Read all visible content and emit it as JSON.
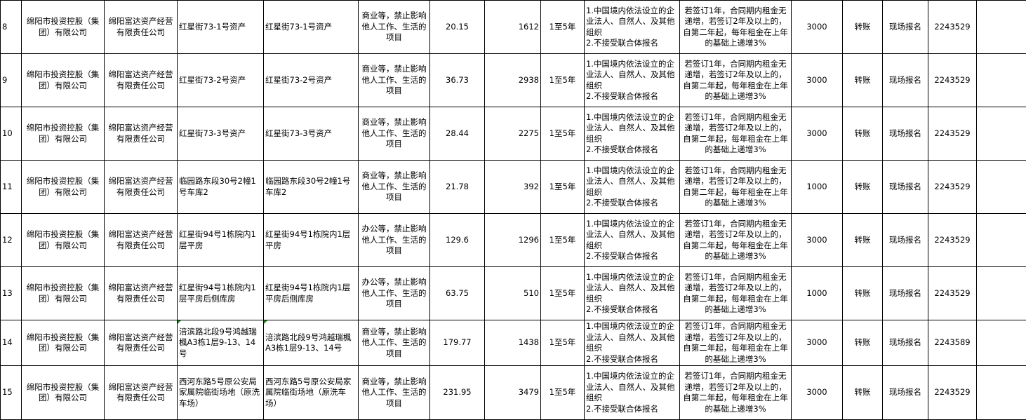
{
  "rows": [
    {
      "no": "8",
      "owner": "绵阳市投资控股（集团）有限公司",
      "manager": "绵阳富达资产经营有限责任公司",
      "asset": "红星街73-1号资产",
      "location": "红星街73-1号资产",
      "use": "商业等，禁止影响他人工作、生活的项目",
      "area": "20.15",
      "rent": "1612",
      "term": "1至5年",
      "conditions": "1.中国境内依法设立的企业法人、自然人、及其他组织\n2.不接受联合体报名",
      "increase": "若签订1年，合同期内租金无递增，若签订2年及以上的，自第二年起，每年租金在上年的基础上递增3%",
      "deposit": "3000",
      "payment": "转账",
      "method": "现场报名",
      "phone": "2243529",
      "extra": ""
    },
    {
      "no": "9",
      "owner": "绵阳市投资控股（集团）有限公司",
      "manager": "绵阳富达资产经营有限责任公司",
      "asset": "红星街73-2号资产",
      "location": "红星街73-2号资产",
      "use": "商业等，禁止影响他人工作、生活的项目",
      "area": "36.73",
      "rent": "2938",
      "term": "1至5年",
      "conditions": "1.中国境内依法设立的企业法人、自然人、及其他组织\n2.不接受联合体报名",
      "increase": "若签订1年，合同期内租金无递增，若签订2年及以上的，自第二年起，每年租金在上年的基础上递增3%",
      "deposit": "3000",
      "payment": "转账",
      "method": "现场报名",
      "phone": "2243529",
      "extra": ""
    },
    {
      "no": "10",
      "owner": "绵阳市投资控股（集团）有限公司",
      "manager": "绵阳富达资产经营有限责任公司",
      "asset": "红星街73-3号资产",
      "location": "红星街73-3号资产",
      "use": "商业等，禁止影响他人工作、生活的项目",
      "area": "28.44",
      "rent": "2275",
      "term": "1至5年",
      "conditions": "1.中国境内依法设立的企业法人、自然人、及其他组织\n2.不接受联合体报名",
      "increase": "若签订1年，合同期内租金无递增，若签订2年及以上的，自第二年起，每年租金在上年的基础上递增3%",
      "deposit": "3000",
      "payment": "转账",
      "method": "现场报名",
      "phone": "2243529",
      "extra": ""
    },
    {
      "no": "11",
      "owner": "绵阳市投资控股（集团）有限公司",
      "manager": "绵阳富达资产经营有限责任公司",
      "asset": "临园路东段30号2幢1号车库2",
      "location": "临园路东段30号2幢1号车库2",
      "use": "商业等，禁止影响他人工作、生活的项目",
      "area": "21.78",
      "rent": "392",
      "term": "1至5年",
      "conditions": "1.中国境内依法设立的企业法人、自然人、及其他组织\n2.不接受联合体报名",
      "increase": "若签订1年，合同期内租金无递增，若签订2年及以上的，自第二年起，每年租金在上年的基础上递增3%",
      "deposit": "1000",
      "payment": "转账",
      "method": "现场报名",
      "phone": "2243529",
      "extra": ""
    },
    {
      "no": "12",
      "owner": "绵阳市投资控股（集团）有限公司",
      "manager": "绵阳富达资产经营有限责任公司",
      "asset": "红星街94号1栋院内1层平房",
      "location": "红星街94号1栋院内1层平房",
      "use": "办公等，禁止影响他人工作、生活的项目",
      "area": "129.6",
      "rent": "1296",
      "term": "1至5年",
      "conditions": "1.中国境内依法设立的企业法人、自然人、及其他组织\n2.不接受联合体报名",
      "increase": "若签订1年，合同期内租金无递增，若签订2年及以上的，自第二年起，每年租金在上年的基础上递增3%",
      "deposit": "3000",
      "payment": "转账",
      "method": "现场报名",
      "phone": "2243529",
      "extra": ""
    },
    {
      "no": "13",
      "owner": "绵阳市投资控股（集团）有限公司",
      "manager": "绵阳富达资产经营有限责任公司",
      "asset": "红星街94号1栋院内1层平房后侧库房",
      "location": "红星街94号1栋院内1层平房后侧库房",
      "use": "办公等，禁止影响他人工作、生活的项目",
      "area": "63.75",
      "rent": "510",
      "term": "1至5年",
      "conditions": "1.中国境内依法设立的企业法人、自然人、及其他组织\n2.不接受联合体报名",
      "increase": "若签订1年，合同期内租金无递增，若签订2年及以上的，自第二年起，每年租金在上年的基础上递增3%",
      "deposit": "1000",
      "payment": "转账",
      "method": "现场报名",
      "phone": "2243529",
      "extra": ""
    },
    {
      "no": "14",
      "owner": "绵阳市投资控股（集团）有限公司",
      "manager": "绵阳富达资产经营有限责任公司",
      "asset": " 涪滨路北段9号鸿越瑞楓A3栋1层9-13、14号",
      "location": " 涪滨路北段9号鸿越瑞楓A3栋1层9-13、14号",
      "use": "商业等，禁止影响他人工作、生活的项目",
      "area": "179.77",
      "rent": "1438",
      "term": "1至5年",
      "conditions": "1.中国境内依法设立的企业法人、自然人、及其他组织\n2.不接受联合体报名",
      "increase": "若签订1年，合同期内租金无递增，若签订2年及以上的，自第二年起，每年租金在上年的基础上递增3%",
      "deposit": "3000",
      "payment": "转账",
      "method": "现场报名",
      "phone": "2243589",
      "extra": ""
    },
    {
      "no": "15",
      "owner": "绵阳市投资控股（集团）有限公司",
      "manager": "绵阳富达资产经营有限责任公司",
      "asset": "西河东路5号原公安局家属院临街场地（原洗车场）",
      "location": "西河东路5号原公安局家属院临街场地（原洗车场）",
      "use": "商业等，禁止影响他人工作、生活的项目",
      "area": "231.95",
      "rent": "3479",
      "term": "1至5年",
      "conditions": "1.中国境内依法设立的企业法人、自然人、及其他组织\n2.不接受联合体报名",
      "increase": "若签订1年，合同期内租金无递增，若签订2年及以上的，自第二年起，每年租金在上年的基础上递增3%",
      "deposit": "3000",
      "payment": "转账",
      "method": "现场报名",
      "phone": "2243529",
      "extra": ""
    }
  ]
}
